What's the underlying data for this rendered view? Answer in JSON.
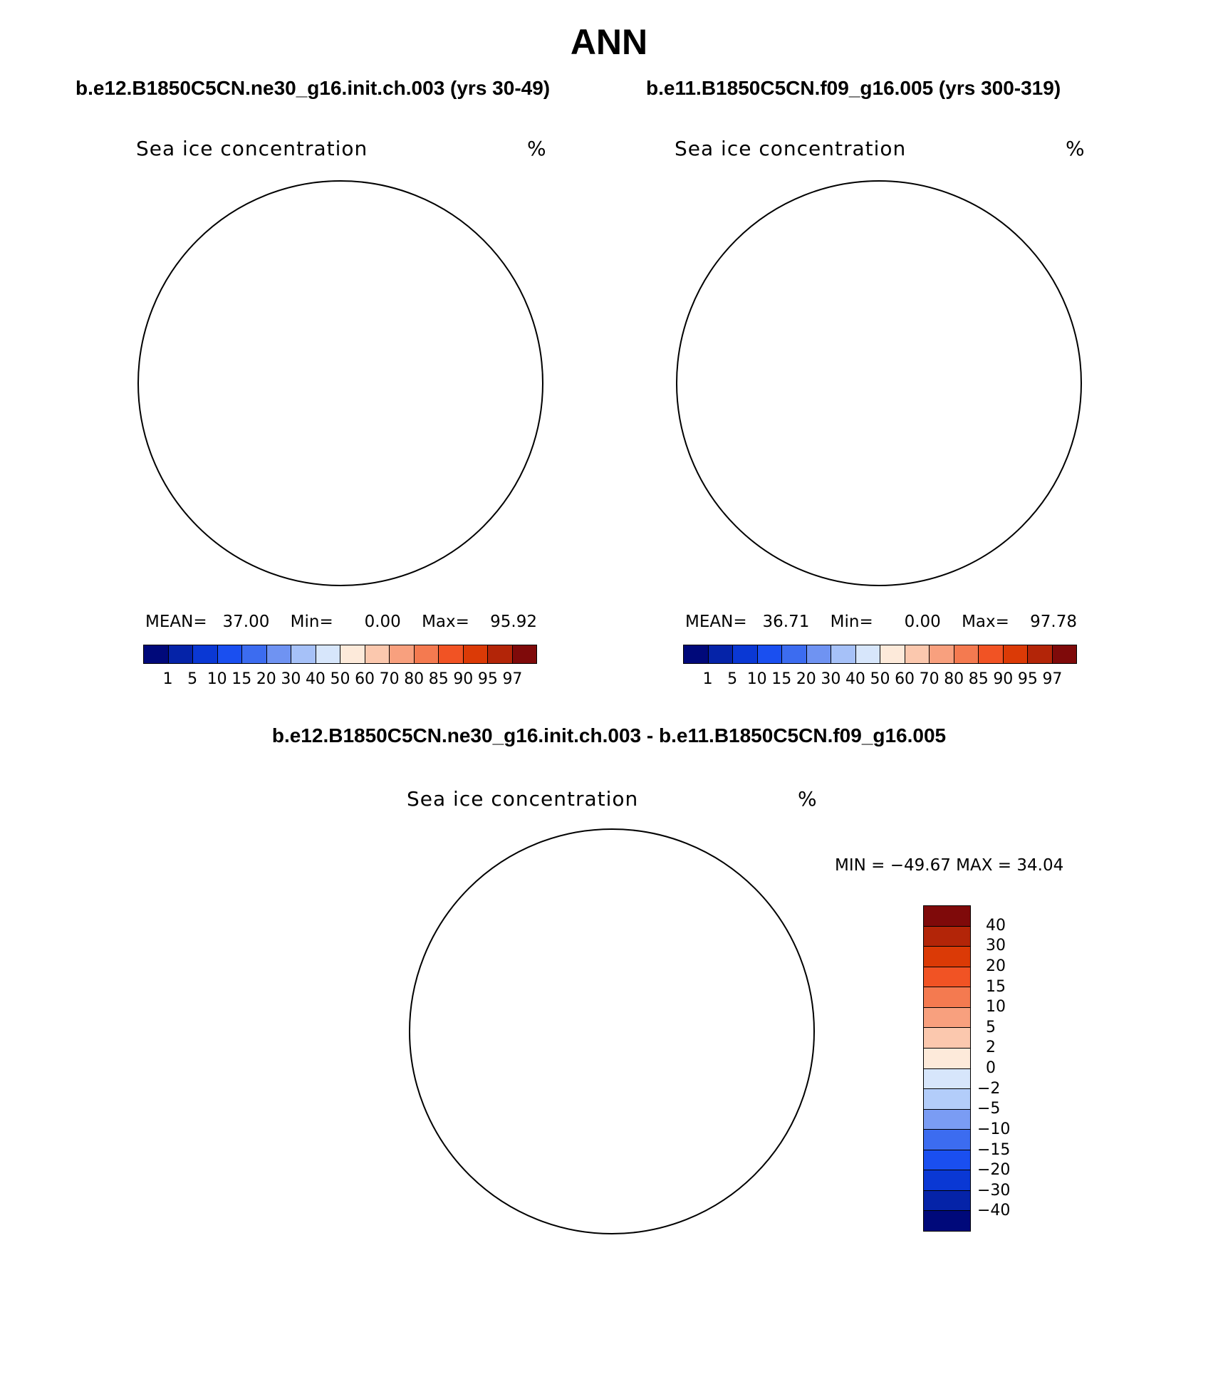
{
  "title": "ANN",
  "panels": [
    {
      "case": "b.e12.B1850C5CN.ne30_g16.init.ch.003 (yrs 30-49)",
      "variable": "Sea ice concentration",
      "units": "%",
      "mean_label": "MEAN=",
      "mean": "37.00",
      "min_label": "Min=",
      "min": "0.00",
      "max_label": "Max=",
      "max": "95.92"
    },
    {
      "case": "b.e11.B1850C5CN.f09_g16.005 (yrs 300-319)",
      "variable": "Sea ice concentration",
      "units": "%",
      "mean_label": "MEAN=",
      "mean": "36.71",
      "min_label": "Min=",
      "min": "0.00",
      "max_label": "Max=",
      "max": "97.78"
    }
  ],
  "abs_colorbar": {
    "levels": [
      "1",
      "5",
      "10",
      "15",
      "20",
      "30",
      "40",
      "50",
      "60",
      "70",
      "80",
      "85",
      "90",
      "95",
      "97"
    ],
    "colors": [
      "#00097a",
      "#0523a8",
      "#0a38d4",
      "#1a4ff0",
      "#3c6cf0",
      "#6f93f2",
      "#a6c1f8",
      "#d7e6fb",
      "#fdeada",
      "#fbc8ae",
      "#f8a07e",
      "#f47a50",
      "#f15324",
      "#db3a06",
      "#b32508",
      "#7f0a0a"
    ]
  },
  "difference": {
    "case": "b.e12.B1850C5CN.ne30_g16.init.ch.003 - b.e11.B1850C5CN.f09_g16.005",
    "variable": "Sea ice concentration",
    "units": "%",
    "minmax": "MIN = −49.67  MAX =   34.04"
  },
  "diff_colorbar": {
    "levels": [
      "40",
      "30",
      "20",
      "15",
      "10",
      "5",
      "2",
      "0",
      "−2",
      "−5",
      "−10",
      "−15",
      "−20",
      "−30",
      "−40"
    ],
    "colors": [
      "#7f0a0a",
      "#b32508",
      "#db3a06",
      "#f15324",
      "#f47a50",
      "#f8a07e",
      "#fbc8ae",
      "#fdeada",
      "#d7e6fb",
      "#b3cdfa",
      "#7a9cf4",
      "#3c6cf0",
      "#1a4ff0",
      "#0a38d4",
      "#0523a8",
      "#00097a"
    ]
  },
  "colors": {
    "land": "#ffffff",
    "coast": "#000000"
  }
}
